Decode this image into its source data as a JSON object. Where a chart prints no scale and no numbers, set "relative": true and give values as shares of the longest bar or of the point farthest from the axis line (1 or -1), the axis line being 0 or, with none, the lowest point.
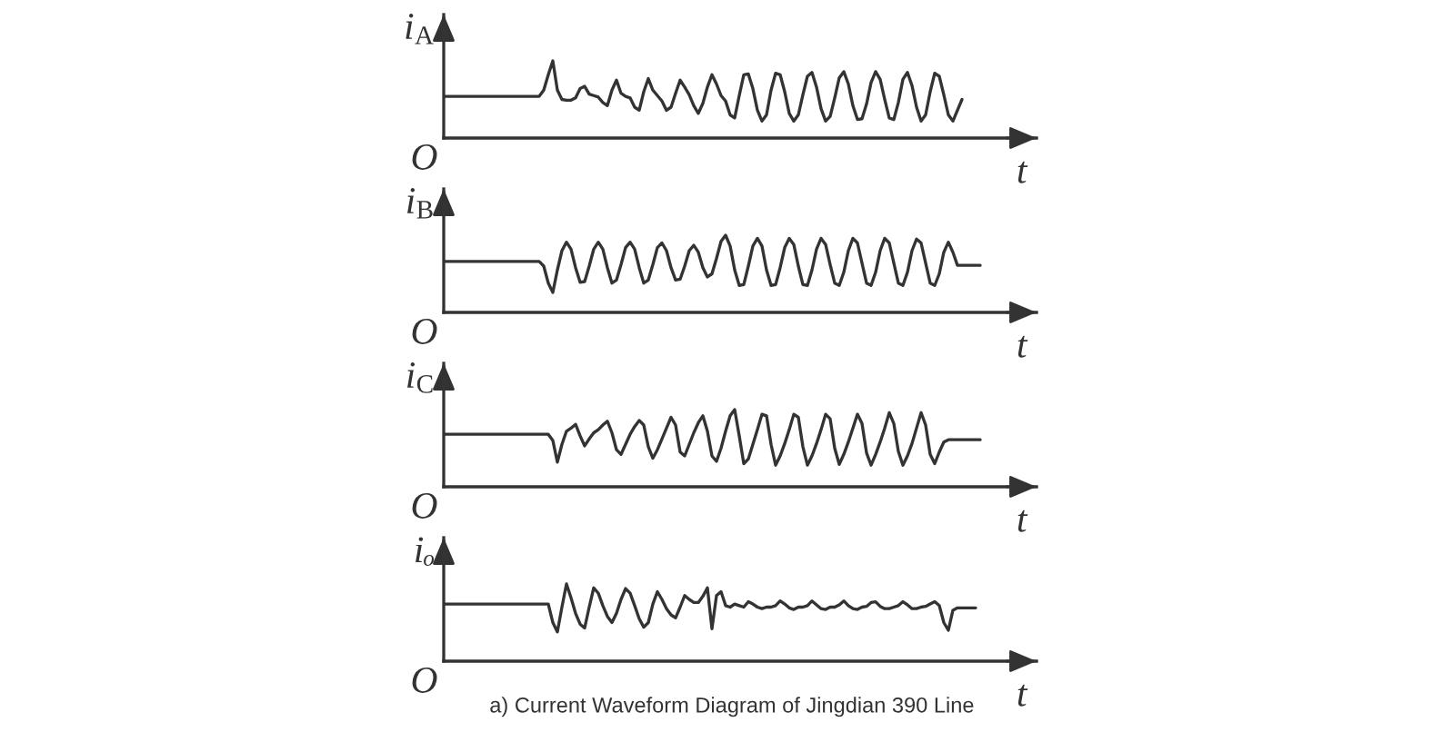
{
  "chart_data": [
    {
      "type": "line",
      "relative": true,
      "ylabel": "i$_{A}$",
      "xlabel": "t",
      "annotations": [
        "O"
      ],
      "color": "#333333",
      "categories": [
        null,
        null,
        null,
        null,
        null,
        null,
        null,
        null,
        null,
        null,
        null,
        null,
        null,
        null,
        null,
        null,
        null,
        null,
        null,
        null,
        null,
        null,
        null,
        null,
        null,
        null,
        null,
        null,
        null,
        null,
        null,
        null,
        null,
        null,
        null,
        null,
        null,
        null,
        null,
        null,
        null,
        null,
        null,
        null,
        null,
        null,
        null,
        null,
        null,
        null,
        null,
        null,
        null,
        null,
        null,
        null,
        null,
        null,
        null,
        null,
        null,
        null,
        null,
        null,
        null,
        null,
        null,
        null,
        null,
        null,
        null,
        null,
        null,
        null,
        null,
        null,
        null,
        null,
        null,
        null,
        null,
        null,
        null,
        null,
        null,
        null,
        null,
        null,
        null,
        null,
        null,
        null,
        null,
        null,
        null,
        null,
        null,
        null,
        null,
        null,
        null,
        null,
        null,
        null,
        null,
        null,
        null,
        null,
        null,
        null,
        null,
        null,
        null,
        null,
        null,
        null,
        null,
        null,
        null,
        null,
        null,
        null,
        null,
        null,
        null,
        null,
        null,
        null,
        null
      ],
      "values": [
        0.54,
        0.54,
        0.54,
        0.54,
        0.54,
        0.54,
        0.54,
        0.54,
        0.54,
        0.54,
        0.54,
        0.54,
        0.54,
        0.54,
        0.54,
        0.54,
        0.54,
        0.54,
        0.54,
        0.54,
        0.54,
        0.54,
        0.62,
        0.82,
        1.0,
        0.62,
        0.5,
        0.49,
        0.49,
        0.52,
        0.64,
        0.67,
        0.57,
        0.55,
        0.53,
        0.46,
        0.42,
        0.62,
        0.75,
        0.58,
        0.54,
        0.52,
        0.4,
        0.36,
        0.6,
        0.77,
        0.62,
        0.55,
        0.48,
        0.36,
        0.4,
        0.58,
        0.75,
        0.66,
        0.56,
        0.42,
        0.32,
        0.45,
        0.66,
        0.82,
        0.7,
        0.55,
        0.48,
        0.3,
        0.26,
        0.55,
        0.82,
        0.83,
        0.64,
        0.36,
        0.22,
        0.3,
        0.62,
        0.84,
        0.82,
        0.6,
        0.32,
        0.22,
        0.3,
        0.56,
        0.8,
        0.85,
        0.66,
        0.38,
        0.22,
        0.28,
        0.52,
        0.78,
        0.86,
        0.7,
        0.42,
        0.24,
        0.25,
        0.44,
        0.72,
        0.86,
        0.76,
        0.5,
        0.26,
        0.24,
        0.46,
        0.76,
        0.85,
        0.68,
        0.4,
        0.22,
        0.3,
        0.6,
        0.84,
        0.8,
        0.56,
        0.3,
        0.22,
        0.36,
        0.5,
        null,
        null,
        null,
        null,
        null,
        null,
        null,
        null,
        null,
        null,
        null,
        null,
        null,
        null
      ]
    },
    {
      "type": "line",
      "relative": true,
      "ylabel": "i$_{B}$",
      "xlabel": "t",
      "annotations": [
        "O"
      ],
      "color": "#333333",
      "categories": [
        null,
        null,
        null,
        null,
        null,
        null,
        null,
        null,
        null,
        null,
        null,
        null,
        null,
        null,
        null,
        null,
        null,
        null,
        null,
        null,
        null,
        null,
        null,
        null,
        null,
        null,
        null,
        null,
        null,
        null,
        null,
        null,
        null,
        null,
        null,
        null,
        null,
        null,
        null,
        null,
        null,
        null,
        null,
        null,
        null,
        null,
        null,
        null,
        null,
        null,
        null,
        null,
        null,
        null,
        null,
        null,
        null,
        null,
        null,
        null,
        null,
        null,
        null,
        null,
        null,
        null,
        null,
        null,
        null,
        null,
        null,
        null,
        null,
        null,
        null,
        null,
        null,
        null,
        null,
        null,
        null,
        null,
        null,
        null,
        null,
        null,
        null,
        null,
        null,
        null,
        null,
        null,
        null,
        null,
        null,
        null,
        null,
        null,
        null,
        null,
        null,
        null,
        null,
        null,
        null,
        null,
        null,
        null,
        null,
        null,
        null,
        null,
        null,
        null,
        null,
        null,
        null,
        null,
        null,
        null,
        null,
        null,
        null,
        null,
        null,
        null,
        null,
        null,
        null
      ],
      "values": [
        0.66,
        0.66,
        0.66,
        0.66,
        0.66,
        0.66,
        0.66,
        0.66,
        0.66,
        0.66,
        0.66,
        0.66,
        0.66,
        0.66,
        0.66,
        0.66,
        0.66,
        0.66,
        0.66,
        0.66,
        0.66,
        0.66,
        0.6,
        0.38,
        0.26,
        0.55,
        0.8,
        0.91,
        0.82,
        0.58,
        0.39,
        0.4,
        0.6,
        0.82,
        0.91,
        0.82,
        0.58,
        0.38,
        0.42,
        0.62,
        0.84,
        0.91,
        0.82,
        0.58,
        0.38,
        0.42,
        0.62,
        0.84,
        0.9,
        0.8,
        0.58,
        0.42,
        0.43,
        0.6,
        0.8,
        0.87,
        0.78,
        0.58,
        0.46,
        0.5,
        0.7,
        0.92,
        1.0,
        0.86,
        0.55,
        0.35,
        0.36,
        0.6,
        0.86,
        0.96,
        0.86,
        0.55,
        0.35,
        0.36,
        0.58,
        0.84,
        0.96,
        0.88,
        0.6,
        0.36,
        0.35,
        0.55,
        0.82,
        0.96,
        0.88,
        0.62,
        0.38,
        0.35,
        0.52,
        0.8,
        0.96,
        0.9,
        0.64,
        0.38,
        0.35,
        0.52,
        0.8,
        0.96,
        0.9,
        0.64,
        0.38,
        0.35,
        0.52,
        0.8,
        0.95,
        0.9,
        0.64,
        0.38,
        0.35,
        0.5,
        0.78,
        0.91,
        0.78,
        0.61,
        0.61,
        0.61,
        0.61,
        0.61,
        0.61,
        null,
        null,
        null,
        null,
        null,
        null,
        null,
        null,
        null,
        null
      ]
    },
    {
      "type": "line",
      "relative": true,
      "ylabel": "i$_{C}$",
      "xlabel": "t",
      "annotations": [
        "O"
      ],
      "color": "#333333",
      "categories": [
        null,
        null,
        null,
        null,
        null,
        null,
        null,
        null,
        null,
        null,
        null,
        null,
        null,
        null,
        null,
        null,
        null,
        null,
        null,
        null,
        null,
        null,
        null,
        null,
        null,
        null,
        null,
        null,
        null,
        null,
        null,
        null,
        null,
        null,
        null,
        null,
        null,
        null,
        null,
        null,
        null,
        null,
        null,
        null,
        null,
        null,
        null,
        null,
        null,
        null,
        null,
        null,
        null,
        null,
        null,
        null,
        null,
        null,
        null,
        null,
        null,
        null,
        null,
        null,
        null,
        null,
        null,
        null,
        null,
        null,
        null,
        null,
        null,
        null,
        null,
        null,
        null,
        null,
        null,
        null,
        null,
        null,
        null,
        null,
        null,
        null,
        null,
        null,
        null,
        null,
        null,
        null,
        null,
        null,
        null,
        null,
        null,
        null,
        null,
        null,
        null,
        null,
        null,
        null,
        null,
        null,
        null,
        null,
        null,
        null,
        null,
        null,
        null,
        null,
        null,
        null,
        null,
        null,
        null,
        null,
        null,
        null,
        null,
        null,
        null,
        null,
        null,
        null,
        null
      ],
      "values": [
        0.68,
        0.68,
        0.68,
        0.68,
        0.68,
        0.68,
        0.68,
        0.68,
        0.68,
        0.68,
        0.68,
        0.68,
        0.68,
        0.68,
        0.68,
        0.68,
        0.68,
        0.68,
        0.68,
        0.68,
        0.68,
        0.68,
        0.68,
        0.68,
        0.6,
        0.32,
        0.55,
        0.72,
        0.76,
        0.81,
        0.66,
        0.53,
        0.62,
        0.7,
        0.74,
        0.8,
        0.85,
        0.7,
        0.48,
        0.42,
        0.55,
        0.68,
        0.78,
        0.86,
        0.8,
        0.52,
        0.37,
        0.48,
        0.62,
        0.76,
        0.9,
        0.8,
        0.45,
        0.4,
        0.55,
        0.7,
        0.83,
        0.92,
        0.72,
        0.4,
        0.33,
        0.5,
        0.72,
        0.92,
        1.0,
        0.66,
        0.3,
        0.36,
        0.55,
        0.74,
        0.94,
        0.92,
        0.55,
        0.28,
        0.4,
        0.56,
        0.74,
        0.94,
        0.9,
        0.52,
        0.28,
        0.4,
        0.56,
        0.74,
        0.94,
        0.88,
        0.5,
        0.29,
        0.42,
        0.58,
        0.76,
        0.94,
        0.82,
        0.44,
        0.28,
        0.42,
        0.58,
        0.76,
        0.96,
        0.82,
        0.46,
        0.28,
        0.4,
        0.56,
        0.76,
        0.96,
        0.8,
        0.42,
        0.3,
        0.45,
        0.58,
        0.61,
        0.61,
        0.61,
        0.61,
        0.61,
        0.61,
        0.61,
        0.61,
        null,
        null,
        null,
        null,
        null,
        null,
        null,
        null,
        null,
        null
      ]
    },
    {
      "type": "line",
      "relative": true,
      "ylabel": "iₒ",
      "xlabel": "t",
      "annotations": [
        "O",
        "a) Current Waveform Diagram of Jingdian 390 Line"
      ],
      "color": "#333333",
      "categories": [
        null,
        null,
        null,
        null,
        null,
        null,
        null,
        null,
        null,
        null,
        null,
        null,
        null,
        null,
        null,
        null,
        null,
        null,
        null,
        null,
        null,
        null,
        null,
        null,
        null,
        null,
        null,
        null,
        null,
        null,
        null,
        null,
        null,
        null,
        null,
        null,
        null,
        null,
        null,
        null,
        null,
        null,
        null,
        null,
        null,
        null,
        null,
        null,
        null,
        null,
        null,
        null,
        null,
        null,
        null,
        null,
        null,
        null,
        null,
        null,
        null,
        null,
        null,
        null,
        null,
        null,
        null,
        null,
        null,
        null,
        null,
        null,
        null,
        null,
        null,
        null,
        null,
        null,
        null,
        null,
        null,
        null,
        null,
        null,
        null,
        null,
        null,
        null,
        null,
        null,
        null,
        null,
        null,
        null,
        null,
        null,
        null,
        null,
        null,
        null,
        null,
        null,
        null,
        null,
        null,
        null,
        null,
        null,
        null,
        null,
        null,
        null,
        null,
        null,
        null,
        null,
        null,
        null,
        null,
        null,
        null,
        null,
        null,
        null,
        null,
        null,
        null,
        null,
        null
      ],
      "values": [
        0.74,
        0.74,
        0.74,
        0.74,
        0.74,
        0.74,
        0.74,
        0.74,
        0.74,
        0.74,
        0.74,
        0.74,
        0.74,
        0.74,
        0.74,
        0.74,
        0.74,
        0.74,
        0.74,
        0.74,
        0.74,
        0.74,
        0.74,
        0.74,
        0.5,
        0.38,
        0.7,
        1.0,
        0.82,
        0.62,
        0.48,
        0.43,
        0.7,
        0.95,
        0.88,
        0.72,
        0.58,
        0.5,
        0.62,
        0.8,
        0.94,
        0.88,
        0.72,
        0.55,
        0.44,
        0.5,
        0.74,
        0.9,
        0.8,
        0.68,
        0.6,
        0.56,
        0.7,
        0.85,
        0.8,
        0.76,
        0.76,
        0.84,
        0.95,
        0.42,
        0.85,
        0.9,
        0.72,
        0.7,
        0.74,
        0.72,
        0.7,
        0.77,
        0.74,
        0.7,
        0.68,
        0.7,
        0.7,
        0.72,
        0.78,
        0.74,
        0.69,
        0.67,
        0.7,
        0.7,
        0.72,
        0.78,
        0.73,
        0.68,
        0.67,
        0.7,
        0.7,
        0.73,
        0.78,
        0.72,
        0.68,
        0.67,
        0.7,
        0.71,
        0.76,
        0.77,
        0.71,
        0.68,
        0.68,
        0.7,
        0.72,
        0.77,
        0.73,
        0.68,
        0.68,
        0.7,
        0.71,
        0.74,
        0.77,
        0.72,
        0.5,
        0.4,
        0.66,
        0.69,
        0.69,
        0.69,
        0.69,
        0.69,
        null,
        null,
        null,
        null,
        null,
        null,
        null,
        null,
        null,
        null,
        null
      ]
    }
  ]
}
